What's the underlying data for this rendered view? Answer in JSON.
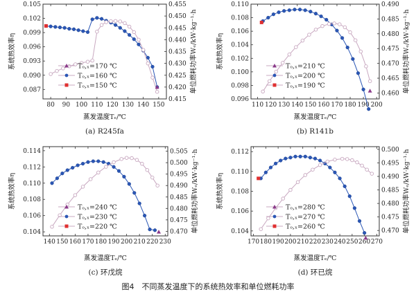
{
  "figure_caption": "图4　不同蒸发温度下的系统热效率和单位燃耗功率",
  "colors": {
    "efficiency_series": "#2a56b5",
    "fuel_series": "#c8a8c0",
    "marker_170": "#8a3a8a",
    "marker_150": "#e03030",
    "axis": "#333333"
  },
  "chart_data": [
    {
      "type": "line",
      "panel_caption": "(a) R245fa",
      "xlabel": "蒸发温度Tₑ/℃",
      "ylabel_left": "系统热效率η",
      "ylabel_right": "单位燃耗功率Wₑ/kW·kg⁻¹·h",
      "xlim": [
        75,
        155
      ],
      "ylim_left": [
        0.085,
        0.105
      ],
      "ylim_right": [
        0.415,
        0.455
      ],
      "xticks": [
        "80",
        "90",
        "100",
        "110",
        "120",
        "130",
        "140",
        "150"
      ],
      "yticks_left": [
        "0.087",
        "0.090",
        "0.093",
        "0.096",
        "0.099",
        "0.102",
        "0.105"
      ],
      "yticks_right": [
        "0.415",
        "0.420",
        "0.425",
        "0.430",
        "0.435",
        "0.440",
        "0.445",
        "0.450",
        "0.455"
      ],
      "legend": [
        "Tₒ,ₓ=170 ℃",
        "Tₒ,ₓ=160 ℃",
        "Tₒ,ₓ=150 ℃"
      ],
      "series": [
        {
          "axis": "left",
          "marker": "filled",
          "x": [
            77,
            80,
            83,
            86,
            89,
            92,
            95,
            98,
            101,
            104,
            107,
            110,
            113,
            116,
            119,
            122,
            125,
            128,
            131,
            134,
            137,
            140,
            143,
            146,
            149
          ],
          "y": [
            0.1004,
            0.1003,
            0.1002,
            0.1001,
            0.1,
            0.0998,
            0.0997,
            0.0995,
            0.0993,
            0.0991,
            0.1018,
            0.1021,
            0.1019,
            0.1015,
            0.1011,
            0.1006,
            0.1,
            0.0993,
            0.0985,
            0.0976,
            0.0965,
            0.0952,
            0.0937,
            0.0918,
            0.0875
          ]
        },
        {
          "axis": "right",
          "marker": "open",
          "x": [
            80,
            84,
            88,
            92,
            96,
            100,
            104,
            107,
            110,
            113,
            116,
            119,
            122,
            125,
            128,
            131,
            134,
            137,
            140,
            143,
            146,
            149
          ],
          "y": [
            0.4255,
            0.4268,
            0.4279,
            0.4288,
            0.4296,
            0.4302,
            0.4307,
            0.4312,
            0.4434,
            0.4462,
            0.4474,
            0.4478,
            0.4479,
            0.4477,
            0.447,
            0.4455,
            0.4432,
            0.44,
            0.4357,
            0.43,
            0.424,
            0.418
          ]
        }
      ],
      "markers_extra": [
        {
          "color_key": "marker_170",
          "x": 149,
          "axis": "left",
          "y": 0.0875
        },
        {
          "color_key": "marker_150",
          "x": 77,
          "axis": "left",
          "y": 0.1004
        }
      ]
    },
    {
      "type": "line",
      "panel_caption": "(b) R141b",
      "xlabel": "蒸发温度Tₑ/℃",
      "ylabel_left": "系统热效率η",
      "ylabel_right": "单位燃耗功率Wₑ/kW·kg⁻¹·h",
      "xlim": [
        105,
        202
      ],
      "ylim_left": [
        0.096,
        0.11
      ],
      "ylim_right": [
        0.458,
        0.49
      ],
      "xticks": [
        "110",
        "120",
        "130",
        "140",
        "150",
        "160",
        "170",
        "180",
        "190",
        "200"
      ],
      "yticks_left": [
        "0.096",
        "0.098",
        "0.100",
        "0.102",
        "0.104",
        "0.106",
        "0.108",
        "0.110"
      ],
      "yticks_right": [
        "0.460",
        "0.465",
        "0.470",
        "0.475",
        "0.480",
        "0.485",
        "0.490"
      ],
      "legend": [
        "Tₒ,ₓ=210 ℃",
        "Tₒ,ₓ=200 ℃",
        "Tₒ,ₓ=190 ℃"
      ],
      "series": [
        {
          "axis": "left",
          "marker": "filled",
          "x": [
            114,
            118,
            122,
            126,
            130,
            134,
            138,
            142,
            146,
            150,
            154,
            158,
            162,
            166,
            170,
            174,
            178,
            182,
            186,
            190,
            194
          ],
          "y": [
            0.1075,
            0.108,
            0.1085,
            0.1088,
            0.109,
            0.1091,
            0.1092,
            0.1092,
            0.1091,
            0.1089,
            0.1086,
            0.1082,
            0.1077,
            0.107,
            0.1061,
            0.105,
            0.1036,
            0.1019,
            0.0998,
            0.0974,
            0.0945
          ]
        },
        {
          "axis": "right",
          "marker": "open",
          "x": [
            114,
            119,
            124,
            129,
            134,
            139,
            144,
            149,
            154,
            159,
            164,
            168,
            172,
            176,
            180,
            184,
            188,
            192,
            195
          ],
          "y": [
            0.4605,
            0.464,
            0.4672,
            0.4702,
            0.473,
            0.4755,
            0.4777,
            0.4797,
            0.4814,
            0.4826,
            0.4833,
            0.4835,
            0.4832,
            0.4822,
            0.4805,
            0.4778,
            0.474,
            0.469,
            0.464
          ]
        }
      ],
      "markers_extra": [
        {
          "color_key": "marker_150",
          "x": 113,
          "axis": "left",
          "y": 0.1073
        },
        {
          "color_key": "marker_170",
          "x": 195,
          "axis": "left",
          "y": 0.0972
        }
      ]
    },
    {
      "type": "line",
      "panel_caption": "(c) 环戊烷",
      "xlabel": "蒸发温度Tₑ/℃",
      "ylabel_left": "系统热效率η",
      "ylabel_right": "单位燃耗功率Wₑ/kW·kg⁻¹·h",
      "xlim": [
        135,
        232
      ],
      "ylim_left": [
        0.1035,
        0.1145
      ],
      "ylim_right": [
        0.468,
        0.507
      ],
      "xticks": [
        "140",
        "150",
        "160",
        "170",
        "180",
        "190",
        "200",
        "210",
        "220",
        "230"
      ],
      "yticks_left": [
        "0.104",
        "0.106",
        "0.108",
        "0.110",
        "0.112",
        "0.114"
      ],
      "yticks_right": [
        "0.470",
        "0.475",
        "0.480",
        "0.485",
        "0.490",
        "0.495",
        "0.500",
        "0.505"
      ],
      "legend": [
        "Tₒ,ₓ=240 ℃",
        "Tₒ,ₓ=230 ℃",
        "Tₒ,ₓ=220 ℃"
      ],
      "series": [
        {
          "axis": "left",
          "marker": "filled",
          "x": [
            142,
            146,
            150,
            154,
            158,
            162,
            166,
            170,
            174,
            178,
            182,
            186,
            190,
            194,
            198,
            202,
            206,
            210,
            214,
            218,
            222
          ],
          "y": [
            0.11,
            0.1106,
            0.1112,
            0.1116,
            0.1119,
            0.1122,
            0.1124,
            0.1126,
            0.1127,
            0.1127,
            0.1126,
            0.1124,
            0.112,
            0.1115,
            0.1108,
            0.1099,
            0.1088,
            0.1075,
            0.106,
            0.1043,
            0.1042
          ]
        },
        {
          "axis": "right",
          "marker": "open",
          "x": [
            142,
            148,
            154,
            160,
            166,
            172,
            178,
            184,
            190,
            196,
            200,
            204,
            208,
            212,
            216,
            220,
            224
          ],
          "y": [
            0.472,
            0.477,
            0.4817,
            0.4858,
            0.4895,
            0.4928,
            0.4957,
            0.4982,
            0.5002,
            0.5016,
            0.5021,
            0.502,
            0.5012,
            0.4995,
            0.4968,
            0.4935,
            0.49
          ]
        }
      ],
      "markers_extra": [
        {
          "color_key": "marker_170",
          "x": 225,
          "axis": "left",
          "y": 0.104
        }
      ]
    },
    {
      "type": "line",
      "panel_caption": "(d) 环已烷",
      "xlabel": "蒸发温度Tₑ/℃",
      "ylabel_left": "系统热效率η",
      "ylabel_right": "单位燃耗功率Wₑ/kW·kg⁻¹·h",
      "xlim": [
        168,
        272
      ],
      "ylim_left": [
        0.1035,
        0.1125
      ],
      "ylim_right": [
        0.468,
        0.501
      ],
      "xticks": [
        "170",
        "180",
        "190",
        "200",
        "210",
        "220",
        "230",
        "240",
        "250",
        "260",
        "270"
      ],
      "yticks_left": [
        "0.104",
        "0.106",
        "0.108",
        "0.110",
        "0.112"
      ],
      "yticks_right": [
        "0.470",
        "0.475",
        "0.480",
        "0.485",
        "0.490",
        "0.495",
        "0.500"
      ],
      "legend": [
        "Tₒ,ₓ=280 ℃",
        "Tₒ,ₓ=270 ℃",
        "Tₒ,ₓ=260 ℃"
      ],
      "series": [
        {
          "axis": "left",
          "marker": "filled",
          "x": [
            176,
            180,
            184,
            188,
            192,
            196,
            200,
            204,
            208,
            212,
            216,
            220,
            224,
            228,
            232,
            236,
            240,
            244,
            248,
            252,
            256,
            260
          ],
          "y": [
            0.1093,
            0.1099,
            0.1104,
            0.1108,
            0.1111,
            0.1113,
            0.1114,
            0.1115,
            0.1115,
            0.1115,
            0.1114,
            0.1113,
            0.1111,
            0.1108,
            0.1104,
            0.1099,
            0.1093,
            0.1085,
            0.1075,
            0.1063,
            0.105,
            0.1038
          ]
        },
        {
          "axis": "right",
          "marker": "open",
          "x": [
            176,
            182,
            188,
            194,
            200,
            206,
            212,
            218,
            224,
            230,
            236,
            242,
            246,
            250,
            254,
            258,
            262,
            266
          ],
          "y": [
            0.4705,
            0.4745,
            0.4783,
            0.4818,
            0.485,
            0.4879,
            0.4905,
            0.4925,
            0.4942,
            0.4955,
            0.4962,
            0.4965,
            0.4964,
            0.496,
            0.4952,
            0.494,
            0.4925,
            0.491
          ]
        }
      ],
      "markers_extra": [
        {
          "color_key": "marker_150",
          "x": 174,
          "axis": "left",
          "y": 0.1093
        },
        {
          "color_key": "marker_170",
          "x": 261,
          "axis": "left",
          "y": 0.1033
        }
      ]
    }
  ]
}
